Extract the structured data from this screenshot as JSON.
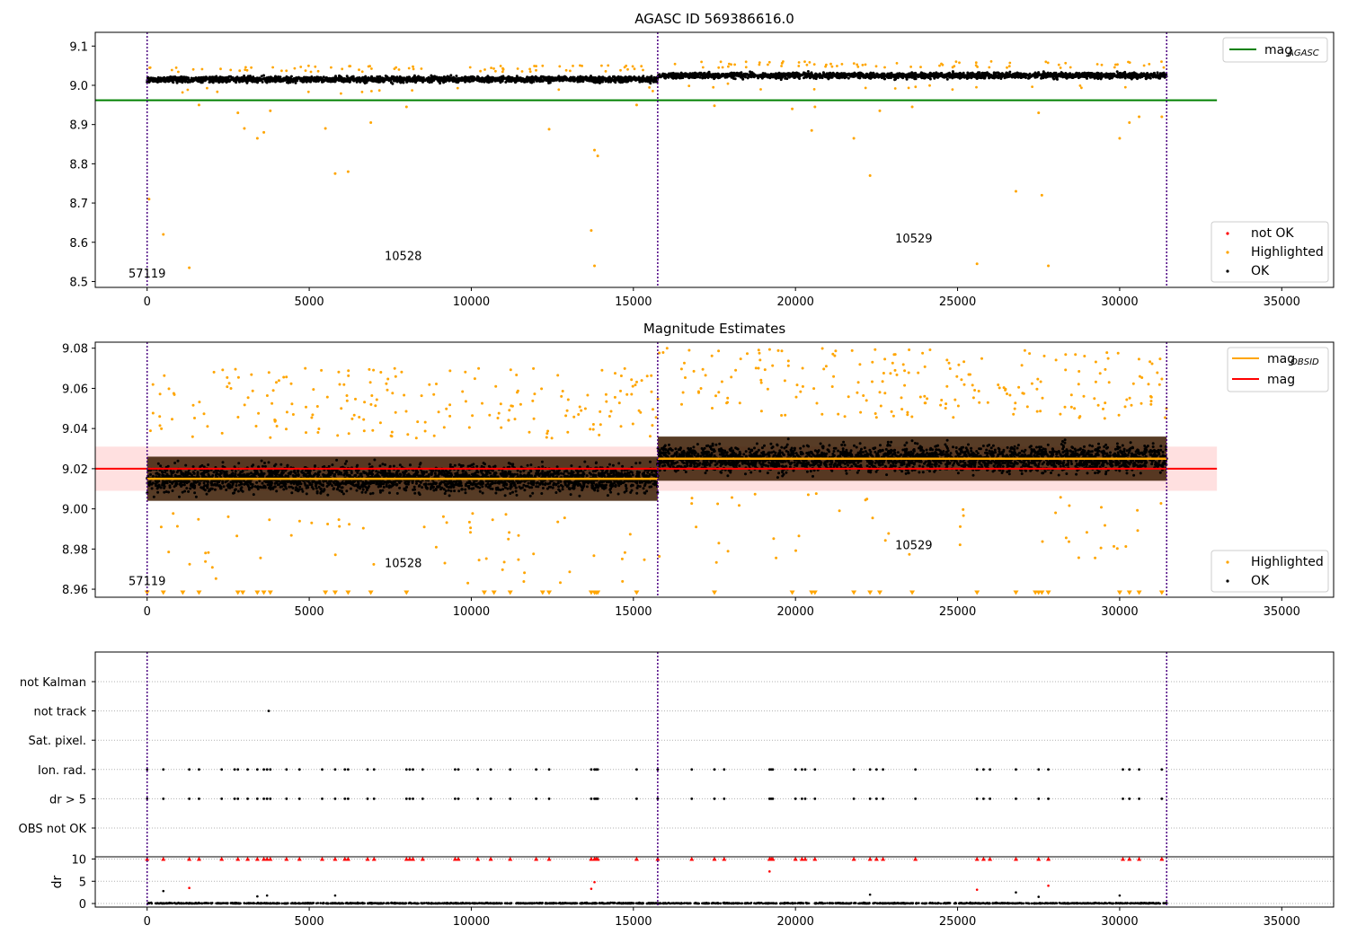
{
  "chart_data": [
    {
      "type": "scatter",
      "title": "AGASC ID 569386616.0",
      "xlim": [
        -1600,
        36600
      ],
      "ylim": [
        8.485,
        9.135
      ],
      "xticks": [
        "0",
        "5000",
        "10000",
        "15000",
        "20000",
        "25000",
        "30000",
        "35000"
      ],
      "xtick_values": [
        0,
        5000,
        10000,
        15000,
        20000,
        25000,
        30000,
        35000
      ],
      "yticks": [
        "8.5",
        "8.6",
        "8.7",
        "8.8",
        "8.9",
        "9.0",
        "9.1"
      ],
      "ytick_values": [
        8.5,
        8.6,
        8.7,
        8.8,
        8.9,
        9.0,
        9.1
      ],
      "obsid_boundaries": [
        0,
        15750,
        31450
      ],
      "obsid_labels": [
        {
          "text": "57119",
          "x": 0,
          "y": 8.51
        },
        {
          "text": "10528",
          "x": 7900,
          "y": 8.555
        },
        {
          "text": "10529",
          "x": 23650,
          "y": 8.6
        }
      ],
      "reference_line": {
        "name": "mag_AGASC",
        "y": 8.962,
        "x": [
          -1600,
          33000
        ],
        "color": "#008000"
      },
      "ok_band": [
        {
          "x": [
            0,
            15750
          ],
          "center": 9.015,
          "spread": 0.012
        },
        {
          "x": [
            15750,
            31450
          ],
          "center": 9.025,
          "spread": 0.012
        }
      ],
      "highlighted_outliers": [
        {
          "x": 60,
          "y": 8.71
        },
        {
          "x": 500,
          "y": 8.62
        },
        {
          "x": 1300,
          "y": 8.535
        },
        {
          "x": 1600,
          "y": 8.95
        },
        {
          "x": 2800,
          "y": 8.93
        },
        {
          "x": 3000,
          "y": 8.89
        },
        {
          "x": 3400,
          "y": 8.865
        },
        {
          "x": 3600,
          "y": 8.88
        },
        {
          "x": 3800,
          "y": 8.935
        },
        {
          "x": 5500,
          "y": 8.89
        },
        {
          "x": 5800,
          "y": 8.775
        },
        {
          "x": 6200,
          "y": 8.78
        },
        {
          "x": 6900,
          "y": 8.905
        },
        {
          "x": 8000,
          "y": 8.945
        },
        {
          "x": 12400,
          "y": 8.888
        },
        {
          "x": 13700,
          "y": 8.63
        },
        {
          "x": 13800,
          "y": 8.54
        },
        {
          "x": 13800,
          "y": 8.835
        },
        {
          "x": 13900,
          "y": 8.82
        },
        {
          "x": 15100,
          "y": 8.95
        },
        {
          "x": 17500,
          "y": 8.948
        },
        {
          "x": 19900,
          "y": 8.94
        },
        {
          "x": 20500,
          "y": 8.885
        },
        {
          "x": 20600,
          "y": 8.945
        },
        {
          "x": 21800,
          "y": 8.865
        },
        {
          "x": 22300,
          "y": 8.77
        },
        {
          "x": 22600,
          "y": 8.935
        },
        {
          "x": 23600,
          "y": 8.945
        },
        {
          "x": 25600,
          "y": 8.545
        },
        {
          "x": 26800,
          "y": 8.73
        },
        {
          "x": 27500,
          "y": 8.93
        },
        {
          "x": 27600,
          "y": 8.72
        },
        {
          "x": 27800,
          "y": 8.54
        },
        {
          "x": 30000,
          "y": 8.865
        },
        {
          "x": 30300,
          "y": 8.905
        },
        {
          "x": 30600,
          "y": 8.92
        },
        {
          "x": 31300,
          "y": 8.92
        }
      ],
      "legend_upper": {
        "position": "upper right",
        "entries": [
          {
            "label": "mag",
            "subscript": "AGASC",
            "color": "#008000",
            "marker": "line"
          }
        ]
      },
      "legend_lower": {
        "position": "lower right",
        "entries": [
          {
            "label": "not OK",
            "color": "#ff0000",
            "marker": "dot"
          },
          {
            "label": "Highlighted",
            "color": "#ffa500",
            "marker": "dot"
          },
          {
            "label": "OK",
            "color": "#000000",
            "marker": "dot"
          }
        ]
      }
    },
    {
      "type": "scatter",
      "title": "Magnitude Estimates",
      "xlim": [
        -1600,
        36600
      ],
      "ylim": [
        8.956,
        9.083
      ],
      "xticks": [
        "0",
        "5000",
        "10000",
        "15000",
        "20000",
        "25000",
        "30000",
        "35000"
      ],
      "xtick_values": [
        0,
        5000,
        10000,
        15000,
        20000,
        25000,
        30000,
        35000
      ],
      "yticks": [
        "8.96",
        "8.98",
        "9.00",
        "9.02",
        "9.04",
        "9.06",
        "9.08"
      ],
      "ytick_values": [
        8.96,
        8.98,
        9.0,
        9.02,
        9.04,
        9.06,
        9.08
      ],
      "obsid_boundaries": [
        0,
        15750,
        31450
      ],
      "obsid_labels": [
        {
          "text": "57119",
          "x": 0,
          "y": 8.962
        },
        {
          "text": "10528",
          "x": 7900,
          "y": 8.971
        },
        {
          "text": "10529",
          "x": 23650,
          "y": 8.98
        }
      ],
      "mag_line": {
        "name": "mag",
        "y": 9.02,
        "band": [
          9.009,
          9.031
        ],
        "x": [
          -1600,
          33000
        ],
        "color": "#ff0000"
      },
      "mag_obsid": [
        {
          "x": [
            0,
            15750
          ],
          "y": 9.015
        },
        {
          "x": [
            15750,
            31450
          ],
          "y": 9.025
        }
      ],
      "ok_band": [
        {
          "x": [
            0,
            15750
          ],
          "center": 9.015,
          "spread": 0.009
        },
        {
          "x": [
            15750,
            31450
          ],
          "center": 9.025,
          "spread": 0.009
        }
      ],
      "clipped_marker_y": 8.958,
      "clipped_markers_x": [
        0,
        500,
        1100,
        1600,
        2800,
        2950,
        3400,
        3600,
        3800,
        5500,
        5800,
        6200,
        6900,
        8000,
        10400,
        10700,
        11200,
        12200,
        12400,
        13700,
        13800,
        13850,
        13900,
        15100,
        17500,
        19900,
        20500,
        20600,
        21800,
        22300,
        22600,
        23600,
        25600,
        26800,
        27400,
        27500,
        27600,
        27800,
        30000,
        30300,
        30600,
        31300
      ],
      "legend_upper": {
        "position": "upper right",
        "entries": [
          {
            "label": "mag",
            "subscript": "OBSID",
            "color": "#ffa500",
            "marker": "line"
          },
          {
            "label": "mag",
            "subscript": "",
            "color": "#ff0000",
            "marker": "line"
          }
        ]
      },
      "legend_lower": {
        "position": "lower right",
        "entries": [
          {
            "label": "Highlighted",
            "color": "#ffa500",
            "marker": "dot"
          },
          {
            "label": "OK",
            "color": "#000000",
            "marker": "dot"
          }
        ]
      }
    },
    {
      "type": "scatter",
      "title": "",
      "xlim": [
        -1600,
        36600
      ],
      "obsid_boundaries": [
        0,
        15750,
        31450
      ],
      "flag_rows": [
        "not Kalman",
        "not track",
        "Sat. pixel.",
        "Ion. rad.",
        "dr > 5",
        "OBS not OK"
      ],
      "flag_points": {
        "not track": [
          3750
        ],
        "Ion. rad.": [
          0,
          500,
          1300,
          1600,
          2300,
          2700,
          2800,
          3100,
          3400,
          3600,
          3700,
          3800,
          4300,
          4700,
          5400,
          5800,
          6100,
          6200,
          6800,
          7000,
          8000,
          8100,
          8200,
          8500,
          9500,
          9600,
          10200,
          10600,
          11200,
          12000,
          12400,
          13700,
          13800,
          13850,
          13900,
          15100,
          15750,
          16800,
          17500,
          17800,
          19200,
          19250,
          19300,
          20000,
          20200,
          20300,
          20600,
          21800,
          22300,
          22500,
          22700,
          23700,
          25600,
          25800,
          26000,
          26800,
          27500,
          27800,
          30100,
          30300,
          30600,
          31300
        ],
        "dr > 5": [
          0,
          500,
          1300,
          1600,
          2300,
          2700,
          2800,
          3100,
          3400,
          3600,
          3700,
          3800,
          4300,
          4700,
          5400,
          5800,
          6100,
          6200,
          6800,
          7000,
          8000,
          8100,
          8200,
          8500,
          9500,
          9600,
          10200,
          10600,
          11200,
          12000,
          12400,
          13700,
          13800,
          13850,
          13900,
          15100,
          15750,
          16800,
          17500,
          17800,
          19200,
          19250,
          19300,
          20000,
          20200,
          20300,
          20600,
          21800,
          22300,
          22500,
          22700,
          23700,
          25600,
          25800,
          26000,
          26800,
          27500,
          27800,
          30100,
          30300,
          30600,
          31300
        ]
      },
      "dr": {
        "ylabel": "dr",
        "ylim": [
          -0.8,
          10.5
        ],
        "yticks": [
          "0",
          "5",
          "10"
        ],
        "ytick_values": [
          0,
          5,
          10
        ],
        "clipped_y": 10,
        "clipped_x": [
          0,
          500,
          1300,
          1600,
          2300,
          2800,
          3100,
          3400,
          3600,
          3700,
          3800,
          4300,
          4700,
          5400,
          5800,
          6100,
          6200,
          6800,
          7000,
          8000,
          8100,
          8200,
          8500,
          9500,
          9600,
          10200,
          10600,
          11200,
          12000,
          12400,
          13700,
          13800,
          13850,
          13900,
          15100,
          15750,
          16800,
          17500,
          17800,
          19200,
          19250,
          19300,
          20000,
          20200,
          20300,
          20600,
          21800,
          22300,
          22500,
          22700,
          23700,
          25600,
          25800,
          26000,
          26800,
          27500,
          27800,
          30100,
          30300,
          30600,
          31300
        ],
        "outliers": [
          {
            "x": 1300,
            "y": 3.5,
            "color": "#ff0000"
          },
          {
            "x": 13700,
            "y": 3.3,
            "color": "#ff0000"
          },
          {
            "x": 13800,
            "y": 4.8,
            "color": "#ff0000"
          },
          {
            "x": 19200,
            "y": 7.2,
            "color": "#ff0000"
          },
          {
            "x": 25600,
            "y": 3.1,
            "color": "#ff0000"
          },
          {
            "x": 27800,
            "y": 4.0,
            "color": "#ff0000"
          },
          {
            "x": 500,
            "y": 2.8,
            "color": "#000000"
          },
          {
            "x": 3400,
            "y": 1.6,
            "color": "#000000"
          },
          {
            "x": 3700,
            "y": 1.8,
            "color": "#000000"
          },
          {
            "x": 5800,
            "y": 1.8,
            "color": "#000000"
          },
          {
            "x": 22300,
            "y": 2.0,
            "color": "#000000"
          },
          {
            "x": 26800,
            "y": 2.5,
            "color": "#000000"
          },
          {
            "x": 27500,
            "y": 1.5,
            "color": "#000000"
          },
          {
            "x": 30000,
            "y": 1.8,
            "color": "#000000"
          }
        ]
      }
    }
  ]
}
